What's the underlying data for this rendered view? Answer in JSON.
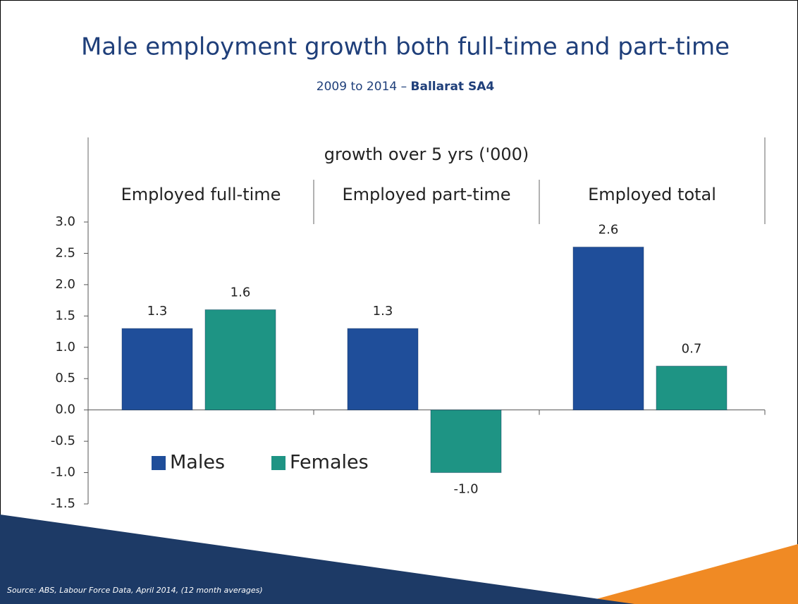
{
  "title": "Male employment growth both full-time and part-time",
  "subtitle": {
    "period": "2009 to 2014 –",
    "region": "Ballarat SA4"
  },
  "chart_data": {
    "type": "bar",
    "axis_title": "growth over 5 yrs ('000)",
    "categories": [
      "Employed full-time",
      "Employed part-time",
      "Employed total"
    ],
    "series": [
      {
        "name": "Males",
        "color": "#1f4e9a",
        "values": [
          1.3,
          1.3,
          2.6
        ],
        "value_labels": [
          "1.3",
          "1.3",
          "2.6"
        ]
      },
      {
        "name": "Females",
        "color": "#1e9484",
        "values": [
          1.6,
          -1.0,
          0.7
        ],
        "value_labels": [
          "1.6",
          "-1.0",
          "0.7"
        ]
      }
    ],
    "ylim": [
      -1.5,
      3
    ],
    "yticks": [
      {
        "value": -1.5,
        "label": "-1.5"
      },
      {
        "value": -1,
        "label": "-1.0"
      },
      {
        "value": -0.5,
        "label": "-0.5"
      },
      {
        "value": 0,
        "label": "0.0"
      },
      {
        "value": 0.5,
        "label": "0.5"
      },
      {
        "value": 1,
        "label": "1.0"
      },
      {
        "value": 1.5,
        "label": "1.5"
      },
      {
        "value": 2,
        "label": "2.0"
      },
      {
        "value": 2.5,
        "label": "2.5"
      },
      {
        "value": 3,
        "label": "3.0"
      }
    ],
    "legend": "lower-left"
  },
  "source": "Source: ABS, Labour Force Data, April 2014, (12 month averages)"
}
